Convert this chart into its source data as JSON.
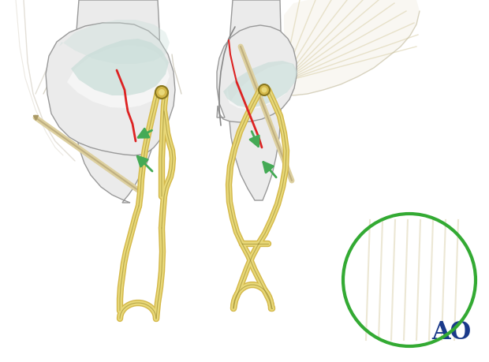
{
  "background_color": "#ffffff",
  "figure_size": [
    6.2,
    4.59
  ],
  "dpi": 100,
  "ao_text": "AO",
  "ao_color": "#1a3a8a",
  "ao_fontsize": 22,
  "bone_color": "#ebebeb",
  "bone_edge_color": "#999999",
  "bone_inner_color": "#f5f5f5",
  "cartilage_color": "#c8ddd8",
  "wire_color": "#d4b84a",
  "wire_light": "#e8d878",
  "wire_dark": "#8a7820",
  "fracture_color": "#dd2222",
  "arrow_color": "#44aa55",
  "needle_color": "#ddd0a0",
  "needle_edge": "#aa9966",
  "inset_circle_color": "#33aa33",
  "tendon_color": "#e0d8b8",
  "tendon_edge": "#c8c0a0",
  "tissue_color": "#e8e4d8",
  "skin_color": "#d4cfc0"
}
